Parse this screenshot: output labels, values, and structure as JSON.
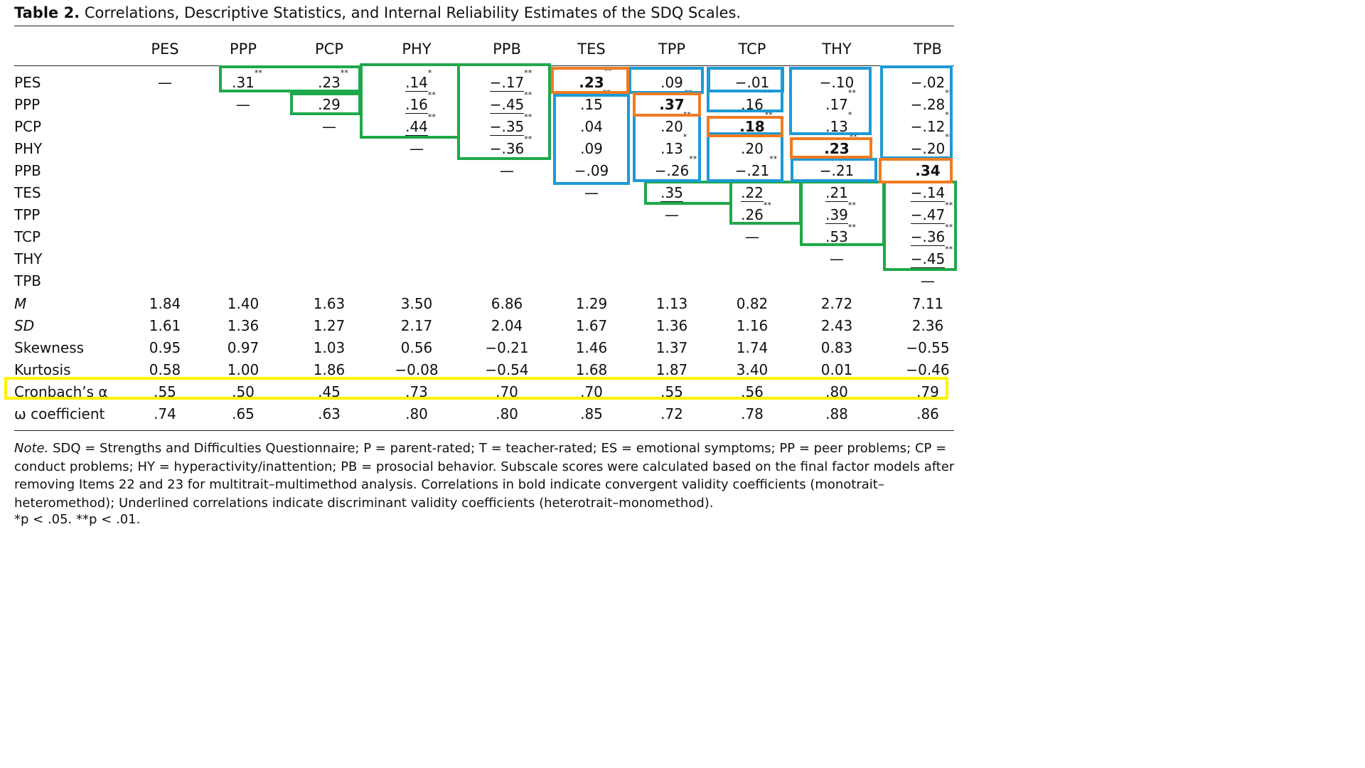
{
  "title": {
    "label": "Table 2.",
    "text": "Correlations, Descriptive Statistics, and Internal Reliability Estimates of the SDQ Scales."
  },
  "columns": [
    "PES",
    "PPP",
    "PCP",
    "PHY",
    "PPB",
    "TES",
    "TPP",
    "TCP",
    "THY",
    "TPB"
  ],
  "dash": "—",
  "correlations": [
    {
      "label": "PES",
      "cells": [
        {
          "col": 1,
          "v": ".31",
          "sig": "**"
        },
        {
          "col": 2,
          "v": ".23",
          "sig": "**"
        },
        {
          "col": 3,
          "v": ".14",
          "sig": "*"
        },
        {
          "col": 4,
          "v": "−.17",
          "sig": "**"
        },
        {
          "col": 5,
          "v": ".23",
          "sig": "**",
          "bold": true
        },
        {
          "col": 6,
          "v": ".09",
          "sig": ""
        },
        {
          "col": 7,
          "v": "−.01",
          "sig": ""
        },
        {
          "col": 8,
          "v": "−.10",
          "sig": ""
        },
        {
          "col": 9,
          "v": "−.02",
          "sig": ""
        }
      ]
    },
    {
      "label": "PPP",
      "cells": [
        {
          "col": 2,
          "v": ".29",
          "sig": "**"
        },
        {
          "col": 3,
          "v": ".16",
          "sig": "**"
        },
        {
          "col": 4,
          "v": "−.45",
          "sig": "**"
        },
        {
          "col": 5,
          "v": ".15",
          "sig": "**"
        },
        {
          "col": 6,
          "v": ".37",
          "sig": "**",
          "bold": true
        },
        {
          "col": 7,
          "v": ".16",
          "sig": "**"
        },
        {
          "col": 8,
          "v": ".17",
          "sig": "**"
        },
        {
          "col": 9,
          "v": "−.28",
          "sig": "**"
        }
      ]
    },
    {
      "label": "PCP",
      "cells": [
        {
          "col": 3,
          "v": ".44",
          "sig": "**"
        },
        {
          "col": 4,
          "v": "−.35",
          "sig": "**"
        },
        {
          "col": 5,
          "v": ".04",
          "sig": ""
        },
        {
          "col": 6,
          "v": ".20",
          "sig": "**"
        },
        {
          "col": 7,
          "v": ".18",
          "sig": "**",
          "bold": true
        },
        {
          "col": 8,
          "v": ".13",
          "sig": "*"
        },
        {
          "col": 9,
          "v": "−.12",
          "sig": "*"
        }
      ]
    },
    {
      "label": "PHY",
      "cells": [
        {
          "col": 4,
          "v": "−.36",
          "sig": "**"
        },
        {
          "col": 5,
          "v": ".09",
          "sig": ""
        },
        {
          "col": 6,
          "v": ".13",
          "sig": "*"
        },
        {
          "col": 7,
          "v": ".20",
          "sig": "**"
        },
        {
          "col": 8,
          "v": ".23",
          "sig": "**",
          "bold": true
        },
        {
          "col": 9,
          "v": "−.20",
          "sig": "**"
        }
      ]
    },
    {
      "label": "PPB",
      "cells": [
        {
          "col": 5,
          "v": "−.09",
          "sig": ""
        },
        {
          "col": 6,
          "v": "−.26",
          "sig": "**"
        },
        {
          "col": 7,
          "v": "−.21",
          "sig": "**"
        },
        {
          "col": 8,
          "v": "−.21",
          "sig": "**"
        },
        {
          "col": 9,
          "v": ".34",
          "sig": "**",
          "bold": true
        }
      ]
    },
    {
      "label": "TES",
      "cells": [
        {
          "col": 6,
          "v": ".35",
          "sig": "**"
        },
        {
          "col": 7,
          "v": ".22",
          "sig": "**"
        },
        {
          "col": 8,
          "v": ".21",
          "sig": "**"
        },
        {
          "col": 9,
          "v": "−.14",
          "sig": "**"
        }
      ]
    },
    {
      "label": "TPP",
      "cells": [
        {
          "col": 7,
          "v": ".26",
          "sig": "**"
        },
        {
          "col": 8,
          "v": ".39",
          "sig": "**"
        },
        {
          "col": 9,
          "v": "−.47",
          "sig": "**"
        }
      ]
    },
    {
      "label": "TCP",
      "cells": [
        {
          "col": 8,
          "v": ".53",
          "sig": "**"
        },
        {
          "col": 9,
          "v": "−.36",
          "sig": "**"
        }
      ]
    },
    {
      "label": "THY",
      "cells": [
        {
          "col": 9,
          "v": "−.45",
          "sig": "**"
        }
      ]
    },
    {
      "label": "TPB",
      "cells": []
    }
  ],
  "stats": [
    {
      "label": "M",
      "italic": true,
      "values": [
        "1.84",
        "1.40",
        "1.63",
        "3.50",
        "6.86",
        "1.29",
        "1.13",
        "0.82",
        "2.72",
        "7.11"
      ]
    },
    {
      "label": "SD",
      "italic": true,
      "values": [
        "1.61",
        "1.36",
        "1.27",
        "2.17",
        "2.04",
        "1.67",
        "1.36",
        "1.16",
        "2.43",
        "2.36"
      ]
    },
    {
      "label": "Skewness",
      "italic": false,
      "values": [
        "0.95",
        "0.97",
        "1.03",
        "0.56",
        "−0.21",
        "1.46",
        "1.37",
        "1.74",
        "0.83",
        "−0.55"
      ]
    },
    {
      "label": "Kurtosis",
      "italic": false,
      "values": [
        "0.58",
        "1.00",
        "1.86",
        "−0.08",
        "−0.54",
        "1.68",
        "1.87",
        "3.40",
        "0.01",
        "−0.46"
      ]
    },
    {
      "label": "Cronbach’s α",
      "italic": false,
      "values": [
        ".55",
        ".50",
        ".45",
        ".73",
        ".70",
        ".70",
        ".55",
        ".56",
        ".80",
        ".79"
      ]
    },
    {
      "label": "ω coefficient",
      "italic": false,
      "values": [
        ".74",
        ".65",
        ".63",
        ".80",
        ".80",
        ".85",
        ".72",
        ".78",
        ".88",
        ".86"
      ]
    }
  ],
  "highlight_colors": {
    "heterotrait_monomethod": "#1fa84a",
    "heterotrait_heteromethod": "#1c9ad6",
    "monotrait_heteromethod": "#f07b22",
    "reliability": "#fff200"
  },
  "note": {
    "label": "Note.",
    "text": "SDQ = Strengths and Difficulties Questionnaire; P = parent-rated; T = teacher-rated; ES = emotional symptoms; PP = peer problems; CP = conduct problems; HY = hyperactivity/inattention; PB = prosocial behavior. Subscale scores were calculated based on the final factor models after removing Items 22 and 23 for multitrait–multimethod analysis. Correlations in bold indicate convergent validity coefficients (monotrait–heteromethod); Underlined correlations indicate discriminant validity coefficients (heterotrait–monomethod).",
    "footnote": "*p < .05. **p < .01."
  }
}
